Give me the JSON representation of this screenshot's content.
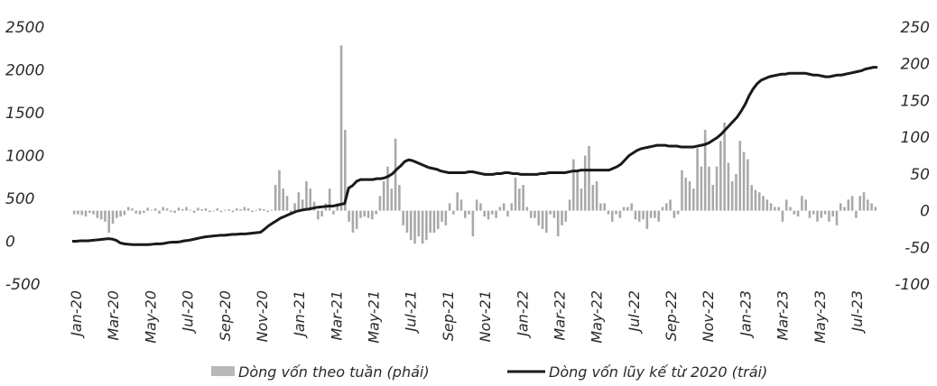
{
  "chart_data": {
    "type": "bar+line",
    "title": "",
    "y_left": {
      "ticks": [
        2500,
        2000,
        1500,
        1000,
        500,
        0,
        -500
      ],
      "range": [
        -500,
        2500
      ]
    },
    "y_right": {
      "ticks": [
        250,
        200,
        150,
        100,
        50,
        0,
        -50,
        -100
      ],
      "range": [
        -100,
        250
      ]
    },
    "x_tick_labels": [
      "Jan-20",
      "Mar-20",
      "May-20",
      "Jul-20",
      "Sep-20",
      "Nov-20",
      "Jan-21",
      "Mar-21",
      "May-21",
      "Jul-21",
      "Sep-21",
      "Nov-21",
      "Jan-22",
      "Mar-22",
      "May-22",
      "Jul-22",
      "Sep-22",
      "Nov-22",
      "Jan-23",
      "Mar-23",
      "May-23",
      "Jul-23"
    ],
    "legend": {
      "bars_label": "Dòng vốn theo tuần (phải)",
      "line_label": "Dòng vốn lũy kế từ 2020 (trái)",
      "placement": "bottom-center"
    },
    "series": [
      {
        "name": "Dòng vốn theo tuần (phải)",
        "kind": "bar",
        "axis": "right",
        "color": "#a9a9a9",
        "values": [
          -5,
          -5,
          -6,
          -8,
          -3,
          -5,
          -10,
          -12,
          -15,
          -30,
          -18,
          -10,
          -8,
          -6,
          5,
          3,
          -4,
          -5,
          -3,
          4,
          1,
          3,
          -4,
          5,
          3,
          -2,
          -3,
          4,
          2,
          5,
          1,
          -3,
          4,
          2,
          3,
          -2,
          -1,
          3,
          -2,
          1,
          2,
          -2,
          3,
          2,
          5,
          3,
          -2,
          1,
          3,
          2,
          -2,
          1,
          35,
          55,
          30,
          20,
          -5,
          10,
          25,
          15,
          40,
          30,
          12,
          -12,
          -8,
          10,
          30,
          -5,
          10,
          225,
          110,
          -15,
          -30,
          -25,
          -10,
          -8,
          -10,
          -12,
          -5,
          20,
          40,
          60,
          30,
          98,
          35,
          -20,
          -30,
          -40,
          -45,
          -35,
          -45,
          -40,
          -30,
          -30,
          -25,
          -15,
          -20,
          10,
          -5,
          25,
          15,
          -10,
          -5,
          -35,
          15,
          10,
          -8,
          -12,
          -5,
          -10,
          5,
          10,
          -8,
          10,
          45,
          30,
          35,
          5,
          -10,
          -10,
          -20,
          -25,
          -30,
          -5,
          -10,
          -35,
          -20,
          -15,
          15,
          70,
          55,
          30,
          75,
          88,
          35,
          40,
          10,
          10,
          -5,
          -15,
          -5,
          -10,
          5,
          5,
          10,
          -12,
          -15,
          -12,
          -25,
          -10,
          -10,
          -15,
          5,
          10,
          15,
          -10,
          -5,
          55,
          45,
          40,
          30,
          85,
          60,
          110,
          60,
          35,
          60,
          95,
          120,
          65,
          40,
          50,
          95,
          80,
          70,
          35,
          28,
          25,
          20,
          15,
          10,
          5,
          5,
          -15,
          15,
          5,
          -5,
          -8,
          20,
          15,
          -10,
          -5,
          -15,
          -10,
          -5,
          -15,
          -8,
          -20,
          10,
          5,
          15,
          20,
          -10,
          20,
          25,
          15,
          10,
          5
        ]
      },
      {
        "name": "Dòng vốn lũy kế từ 2020 (trái)",
        "kind": "line",
        "axis": "left",
        "color": "#1a1a1a",
        "values": [
          0,
          0,
          5,
          5,
          5,
          10,
          15,
          20,
          25,
          30,
          25,
          10,
          -20,
          -30,
          -35,
          -40,
          -40,
          -40,
          -40,
          -40,
          -35,
          -30,
          -30,
          -25,
          -15,
          -10,
          -10,
          -5,
          5,
          10,
          20,
          30,
          40,
          50,
          55,
          60,
          65,
          70,
          70,
          75,
          80,
          80,
          85,
          85,
          90,
          95,
          100,
          105,
          140,
          180,
          210,
          240,
          270,
          290,
          310,
          330,
          350,
          360,
          370,
          375,
          385,
          395,
          400,
          405,
          410,
          410,
          420,
          430,
          440,
          620,
          650,
          700,
          720,
          720,
          720,
          720,
          730,
          730,
          740,
          760,
          790,
          840,
          880,
          930,
          950,
          940,
          920,
          900,
          880,
          860,
          850,
          840,
          820,
          810,
          800,
          800,
          800,
          800,
          800,
          810,
          810,
          800,
          790,
          780,
          780,
          780,
          790,
          790,
          800,
          800,
          790,
          790,
          780,
          780,
          780,
          780,
          780,
          790,
          790,
          800,
          800,
          800,
          800,
          800,
          810,
          820,
          820,
          830,
          830,
          830,
          830,
          830,
          830,
          830,
          830,
          850,
          870,
          900,
          950,
          1000,
          1030,
          1060,
          1080,
          1090,
          1100,
          1110,
          1120,
          1120,
          1120,
          1110,
          1110,
          1110,
          1100,
          1100,
          1100,
          1100,
          1110,
          1120,
          1130,
          1150,
          1180,
          1210,
          1250,
          1300,
          1350,
          1400,
          1450,
          1520,
          1600,
          1700,
          1780,
          1840,
          1880,
          1900,
          1920,
          1930,
          1940,
          1950,
          1950,
          1960,
          1960,
          1960,
          1960,
          1960,
          1950,
          1940,
          1940,
          1930,
          1920,
          1920,
          1930,
          1940,
          1940,
          1950,
          1960,
          1970,
          1980,
          1990,
          2010,
          2020,
          2030,
          2030
        ]
      }
    ]
  }
}
